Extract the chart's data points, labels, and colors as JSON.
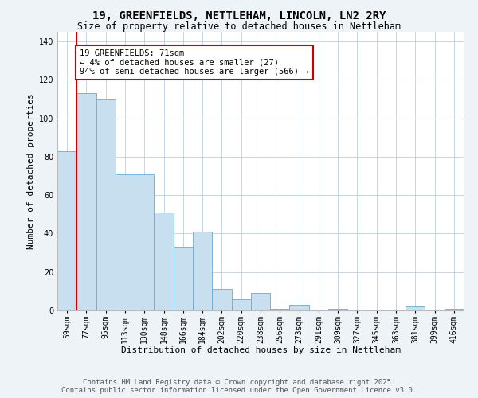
{
  "title": "19, GREENFIELDS, NETTLEHAM, LINCOLN, LN2 2RY",
  "subtitle": "Size of property relative to detached houses in Nettleham",
  "xlabel": "Distribution of detached houses by size in Nettleham",
  "ylabel": "Number of detached properties",
  "bar_labels": [
    "59sqm",
    "77sqm",
    "95sqm",
    "113sqm",
    "130sqm",
    "148sqm",
    "166sqm",
    "184sqm",
    "202sqm",
    "220sqm",
    "238sqm",
    "256sqm",
    "273sqm",
    "291sqm",
    "309sqm",
    "327sqm",
    "345sqm",
    "363sqm",
    "381sqm",
    "399sqm",
    "416sqm"
  ],
  "bar_values": [
    83,
    113,
    110,
    71,
    71,
    51,
    33,
    41,
    11,
    6,
    9,
    1,
    3,
    0,
    1,
    0,
    0,
    0,
    2,
    0,
    1
  ],
  "bar_color": "#c8dff0",
  "bar_edge_color": "#6aaad4",
  "annotation_title": "19 GREENFIELDS: 71sqm",
  "annotation_line1": "← 4% of detached houses are smaller (27)",
  "annotation_line2": "94% of semi-detached houses are larger (566) →",
  "annotation_box_color": "#ffffff",
  "annotation_box_edge": "#cc0000",
  "marker_line_color": "#cc0000",
  "ylim": [
    0,
    145
  ],
  "yticks": [
    0,
    20,
    40,
    60,
    80,
    100,
    120,
    140
  ],
  "footer_line1": "Contains HM Land Registry data © Crown copyright and database right 2025.",
  "footer_line2": "Contains public sector information licensed under the Open Government Licence v3.0.",
  "bg_color": "#eef3f8",
  "plot_bg_color": "#ffffff",
  "grid_color": "#c5d5e5",
  "title_fontsize": 10,
  "subtitle_fontsize": 8.5,
  "axis_label_fontsize": 8,
  "tick_fontsize": 7,
  "footer_fontsize": 6.5
}
